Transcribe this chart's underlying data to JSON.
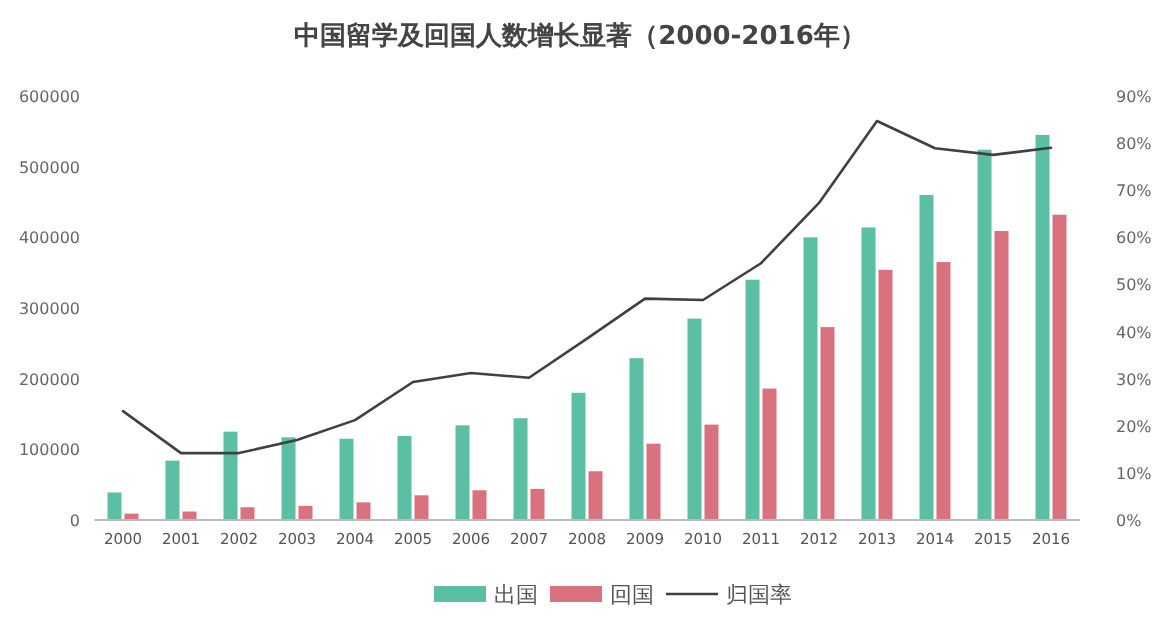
{
  "chart_data": {
    "type": "bar",
    "title": "中国留学及回国人数增长显著（2000-2016年）",
    "categories": [
      "2000",
      "2001",
      "2002",
      "2003",
      "2004",
      "2005",
      "2006",
      "2007",
      "2008",
      "2009",
      "2010",
      "2011",
      "2012",
      "2013",
      "2014",
      "2015",
      "2016"
    ],
    "series": [
      {
        "name": "出国",
        "color": "#5bbfa3",
        "values": [
          39000,
          84000,
          125000,
          117000,
          115000,
          119000,
          134000,
          144000,
          180000,
          229000,
          285000,
          340000,
          400000,
          414000,
          460000,
          524000,
          545000
        ]
      },
      {
        "name": "回国",
        "color": "#d9727f",
        "values": [
          9000,
          12000,
          18000,
          20000,
          25000,
          35000,
          42000,
          44000,
          69000,
          108000,
          135000,
          186000,
          273000,
          354000,
          365000,
          409000,
          432000
        ]
      },
      {
        "name": "归国率",
        "type": "line",
        "axis": "y2",
        "color": "#404040",
        "values": [
          23.1,
          14.2,
          14.2,
          17,
          21.2,
          29.3,
          31.2,
          30.2,
          38.5,
          47,
          46.7,
          54.5,
          67.3,
          84.7,
          78.9,
          77.5,
          79
        ]
      }
    ],
    "ylim": [
      0,
      600000
    ],
    "yticks": [
      0,
      100000,
      200000,
      300000,
      400000,
      500000,
      600000
    ],
    "y2lim": [
      0,
      90
    ],
    "y2ticks": [
      {
        "value": 0,
        "label": "0%"
      },
      {
        "value": 10,
        "label": "10%"
      },
      {
        "value": 20,
        "label": "20%"
      },
      {
        "value": 30,
        "label": "30%"
      },
      {
        "value": 40,
        "label": "40%"
      },
      {
        "value": 50,
        "label": "50%"
      },
      {
        "value": 60,
        "label": "60%"
      },
      {
        "value": 70,
        "label": "70%"
      },
      {
        "value": 80,
        "label": "80%"
      },
      {
        "value": 90,
        "label": "90%"
      }
    ],
    "grid": false,
    "legend": "bottom",
    "marker": "none",
    "line_style": "solid"
  }
}
